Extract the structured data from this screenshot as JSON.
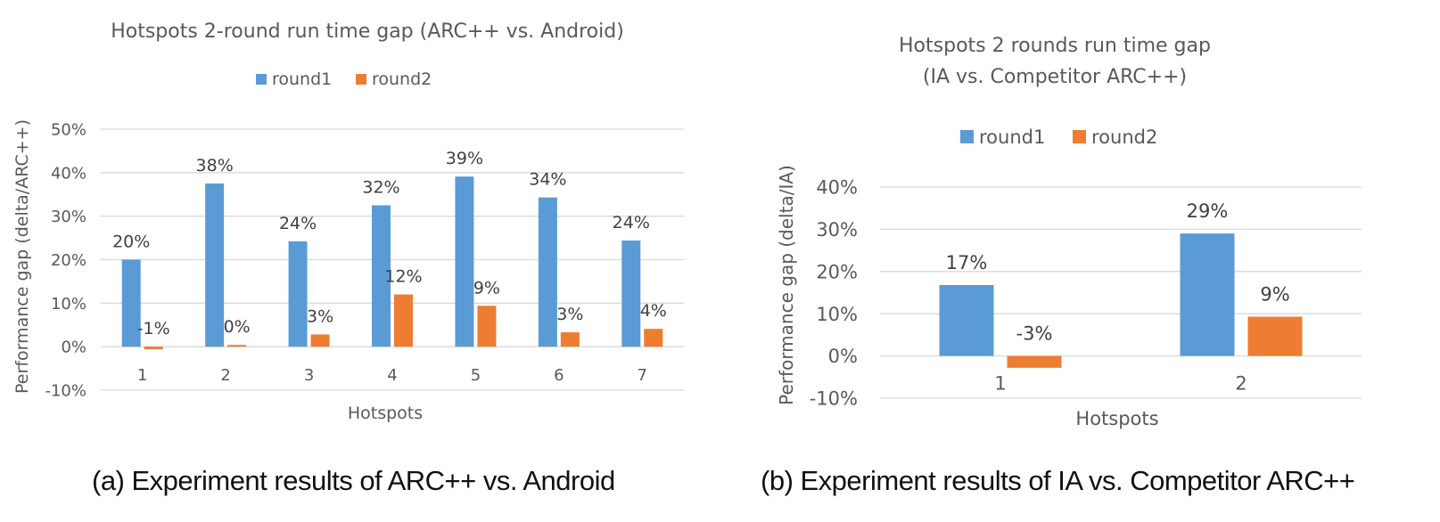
{
  "chart_data": [
    {
      "type": "bar",
      "title": "Hotspots 2-round run time gap (ARC++ vs. Android)",
      "xlabel": "Hotspots",
      "ylabel": "Performance gap (delta/ARC++)",
      "categories": [
        "1",
        "2",
        "3",
        "4",
        "5",
        "6",
        "7"
      ],
      "series": [
        {
          "name": "round1",
          "color": "#5B9BD5",
          "values": [
            20,
            37.5,
            24.2,
            32.5,
            39.1,
            34.3,
            24.4
          ],
          "labels": [
            "20%",
            "38%",
            "24%",
            "32%",
            "39%",
            "34%",
            "24%"
          ]
        },
        {
          "name": "round2",
          "color": "#ED7D31",
          "values": [
            -0.6,
            0.4,
            2.8,
            12,
            9.4,
            3.3,
            4.1
          ],
          "labels": [
            "-1%",
            "0%",
            "3%",
            "12%",
            "9%",
            "3%",
            "4%"
          ]
        }
      ],
      "ylim": [
        -10,
        50
      ],
      "yticks": [
        "-10%",
        "0%",
        "10%",
        "20%",
        "30%",
        "40%",
        "50%"
      ],
      "grid": true,
      "legend": "top",
      "caption": "(a) Experiment results of ARC++ vs. Android"
    },
    {
      "type": "bar",
      "title": "Hotspots 2 rounds run time gap",
      "subtitle": "(IA vs. Competitor ARC++)",
      "xlabel": "Hotspots",
      "ylabel": "Performance gap (delta/IA)",
      "categories": [
        "1",
        "2"
      ],
      "series": [
        {
          "name": "round1",
          "color": "#5B9BD5",
          "values": [
            16.8,
            29
          ],
          "labels": [
            "17%",
            "29%"
          ]
        },
        {
          "name": "round2",
          "color": "#ED7D31",
          "values": [
            -2.8,
            9.3
          ],
          "labels": [
            "-3%",
            "9%"
          ]
        }
      ],
      "ylim": [
        -10,
        40
      ],
      "yticks": [
        "-10%",
        "0%",
        "10%",
        "20%",
        "30%",
        "40%"
      ],
      "grid": true,
      "legend": "top",
      "caption": "(b) Experiment results of IA vs. Competitor ARC++"
    }
  ]
}
